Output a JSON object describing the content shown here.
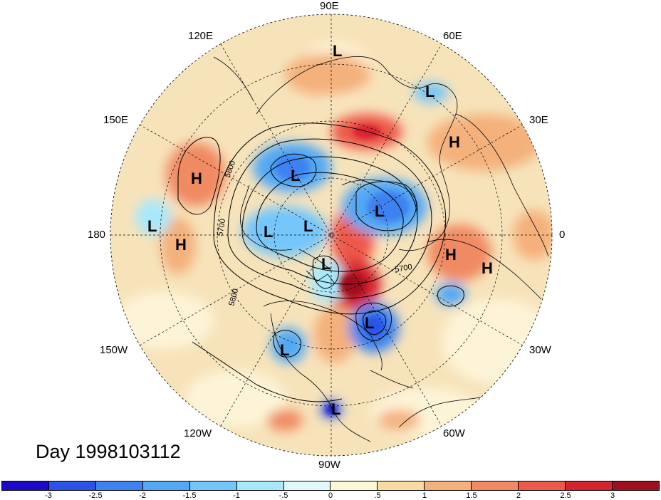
{
  "title": "Day 1998103112",
  "longitude_labels": {
    "top": "90E",
    "top_left": "120E",
    "top_right": "60E",
    "upper_left": "150E",
    "upper_right": "30E",
    "left": "180",
    "right": "0",
    "lower_left": "150W",
    "lower_right": "30W",
    "bottom_left": "120W",
    "bottom_right": "60W",
    "bottom": "90W"
  },
  "contour_labels": [
    "5800",
    "5700",
    "5800",
    "5700"
  ],
  "pressure_centers": [
    {
      "name": "L-north-siberia",
      "type": "L"
    },
    {
      "name": "L-west-siberia",
      "type": "L"
    },
    {
      "name": "H-ural",
      "type": "H"
    },
    {
      "name": "H-north-pacific-west",
      "type": "H"
    },
    {
      "name": "L-east-siberia",
      "type": "L"
    },
    {
      "name": "L-arctic-europe",
      "type": "L"
    },
    {
      "name": "L-pacific-west",
      "type": "L"
    },
    {
      "name": "H-pacific",
      "type": "H"
    },
    {
      "name": "L-alaska-a",
      "type": "L"
    },
    {
      "name": "L-alaska-b",
      "type": "L"
    },
    {
      "name": "L-arctic-canada",
      "type": "L"
    },
    {
      "name": "H-europe",
      "type": "H"
    },
    {
      "name": "H-north-africa",
      "type": "H"
    },
    {
      "name": "L-north-atlantic",
      "type": "L"
    },
    {
      "name": "L-western-us",
      "type": "L"
    },
    {
      "name": "L-central-america",
      "type": "L"
    }
  ],
  "colorbar": {
    "ticks": [
      "-3",
      "-2.5",
      "-2",
      "-1.5",
      "-1",
      "-.5",
      "0",
      ".5",
      "1",
      "1.5",
      "2",
      "2.5",
      "3"
    ],
    "colors": [
      "#1b0bc8",
      "#2b53e8",
      "#3d82f0",
      "#52a8f5",
      "#74c6fa",
      "#a7e8fc",
      "#dff9fb",
      "#fdf7d6",
      "#f8dba0",
      "#f4b17c",
      "#f18a63",
      "#ee5848",
      "#d6242f",
      "#a10f1f"
    ]
  }
}
